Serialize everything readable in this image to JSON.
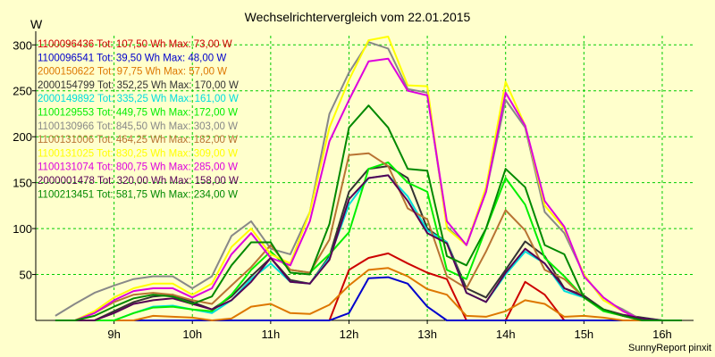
{
  "chart_data": {
    "type": "line",
    "title": "Wechselrichtervergleich vom 22.01.2015",
    "ylabel": "W",
    "xlabel": "",
    "footer": "SunnyReport pinxit",
    "background": "#ffffcc",
    "grid": true,
    "grid_color": "#00cc00",
    "legend_position": "top-left",
    "xlim": [
      8.0,
      16.4
    ],
    "ylim": [
      0,
      310
    ],
    "x_ticks": [
      9,
      10,
      11,
      12,
      13,
      14,
      15,
      16
    ],
    "x_tick_labels": [
      "9h",
      "10h",
      "11h",
      "12h",
      "13h",
      "14h",
      "15h",
      "16h"
    ],
    "y_ticks": [
      50,
      100,
      150,
      200,
      250,
      300
    ],
    "y_tick_labels": [
      "50",
      "100",
      "150",
      "200",
      "250",
      "300"
    ],
    "x": [
      8.25,
      8.5,
      8.75,
      9.0,
      9.25,
      9.5,
      9.75,
      10.0,
      10.25,
      10.5,
      10.75,
      11.0,
      11.25,
      11.5,
      11.75,
      12.0,
      12.25,
      12.5,
      12.75,
      13.0,
      13.25,
      13.5,
      13.75,
      14.0,
      14.25,
      14.5,
      14.75,
      15.0,
      15.25,
      15.5,
      15.75,
      16.0,
      16.25
    ],
    "series": [
      {
        "id": "1100096436",
        "legend": "1100096436 Tot: 107,50 Wh Max: 73,00 W",
        "color": "#cc0000",
        "values": [
          0,
          0,
          0,
          0,
          0,
          0,
          0,
          0,
          0,
          0,
          0,
          0,
          0,
          0,
          0,
          55,
          68,
          73,
          62,
          52,
          45,
          0,
          0,
          0,
          42,
          28,
          0,
          0,
          0,
          0,
          0,
          0,
          0
        ]
      },
      {
        "id": "1100096541",
        "legend": "1100096541 Tot: 39,50 Wh Max: 48,00 W",
        "color": "#0000cc",
        "values": [
          0,
          0,
          0,
          0,
          0,
          0,
          0,
          0,
          0,
          0,
          0,
          0,
          0,
          0,
          0,
          8,
          46,
          47,
          40,
          15,
          0,
          0,
          0,
          0,
          0,
          0,
          0,
          0,
          0,
          0,
          0,
          0,
          0
        ]
      },
      {
        "id": "2000150622",
        "legend": "2000150622 Tot: 97,75 Wh Max: 57,00 W",
        "color": "#dd7700",
        "values": [
          0,
          0,
          0,
          0,
          0,
          5,
          4,
          3,
          0,
          2,
          15,
          18,
          8,
          7,
          17,
          38,
          55,
          57,
          48,
          34,
          28,
          5,
          4,
          10,
          22,
          18,
          4,
          5,
          3,
          0,
          0,
          0,
          0
        ]
      },
      {
        "id": "2000154799",
        "legend": "2000154799 Tot: 352,25 Wh Max: 170,00 W",
        "color": "#333333",
        "values": [
          0,
          0,
          0,
          10,
          20,
          26,
          28,
          20,
          12,
          26,
          48,
          68,
          44,
          40,
          70,
          140,
          165,
          168,
          155,
          100,
          85,
          35,
          25,
          55,
          86,
          70,
          35,
          27,
          12,
          6,
          3,
          0,
          0
        ]
      },
      {
        "id": "2000149892",
        "legend": "2000149892 Tot: 335,25 Wh Max: 161,00 W",
        "color": "#00dddd",
        "values": [
          0,
          0,
          0,
          0,
          8,
          15,
          16,
          12,
          8,
          22,
          45,
          62,
          42,
          40,
          68,
          126,
          155,
          158,
          135,
          98,
          85,
          30,
          20,
          50,
          75,
          62,
          32,
          25,
          12,
          5,
          2,
          0,
          0
        ]
      },
      {
        "id": "1100129553",
        "legend": "1100129553 Tot: 449,75 Wh Max: 172,00 W",
        "color": "#00ee00",
        "values": [
          0,
          0,
          0,
          0,
          8,
          14,
          15,
          12,
          10,
          28,
          55,
          75,
          55,
          52,
          72,
          96,
          165,
          172,
          150,
          140,
          55,
          45,
          100,
          155,
          126,
          68,
          48,
          25,
          10,
          5,
          0,
          0,
          0
        ]
      },
      {
        "id": "1100130966",
        "legend": "1100130966 Tot: 845,50 Wh Max: 303,00 W",
        "color": "#888888",
        "values": [
          5,
          18,
          30,
          38,
          45,
          48,
          48,
          35,
          48,
          92,
          108,
          78,
          72,
          118,
          225,
          270,
          303,
          296,
          252,
          248,
          102,
          82,
          140,
          240,
          210,
          118,
          95,
          50,
          22,
          12,
          0,
          0,
          0
        ]
      },
      {
        "id": "1100131006",
        "legend": "1100131006 Tot: 464,25 Wh Max: 182,00 W",
        "color": "#b87333",
        "values": [
          0,
          0,
          8,
          20,
          28,
          30,
          28,
          22,
          18,
          38,
          58,
          82,
          55,
          52,
          88,
          180,
          182,
          168,
          122,
          110,
          48,
          35,
          75,
          120,
          98,
          55,
          45,
          25,
          12,
          5,
          0,
          0,
          0
        ]
      },
      {
        "id": "1100131025",
        "legend": "1100131025 Tot: 830,25 Wh Max: 309,00 W",
        "color": "#ffff00",
        "values": [
          0,
          0,
          10,
          25,
          35,
          40,
          40,
          28,
          40,
          80,
          100,
          72,
          62,
          118,
          210,
          262,
          305,
          309,
          256,
          255,
          100,
          82,
          145,
          260,
          212,
          125,
          100,
          50,
          22,
          10,
          0,
          0,
          0
        ]
      },
      {
        "id": "1100131074",
        "legend": "1100131074 Tot: 800,75 Wh Max: 285,00 W",
        "color": "#dd00dd",
        "values": [
          0,
          0,
          8,
          22,
          32,
          35,
          35,
          25,
          35,
          72,
          95,
          68,
          60,
          108,
          195,
          240,
          282,
          285,
          250,
          245,
          108,
          82,
          140,
          248,
          212,
          130,
          102,
          48,
          25,
          10,
          0,
          0,
          0
        ]
      },
      {
        "id": "2000001478",
        "legend": "2000001478 Tot: 320,00 Wh Max: 158,00 W",
        "color": "#550055",
        "values": [
          0,
          0,
          0,
          8,
          18,
          22,
          24,
          18,
          12,
          22,
          42,
          68,
          42,
          40,
          66,
          132,
          155,
          158,
          130,
          95,
          84,
          30,
          20,
          52,
          78,
          62,
          35,
          26,
          12,
          6,
          2,
          0,
          0
        ]
      },
      {
        "id": "1100213451",
        "legend": "1100213451 Tot: 581,75 Wh Max: 234,00 W",
        "color": "#008800",
        "values": [
          0,
          0,
          5,
          15,
          24,
          28,
          26,
          18,
          26,
          60,
          85,
          85,
          52,
          50,
          105,
          210,
          234,
          210,
          165,
          163,
          70,
          60,
          100,
          165,
          145,
          82,
          72,
          25,
          12,
          5,
          0,
          0,
          0
        ]
      }
    ]
  }
}
